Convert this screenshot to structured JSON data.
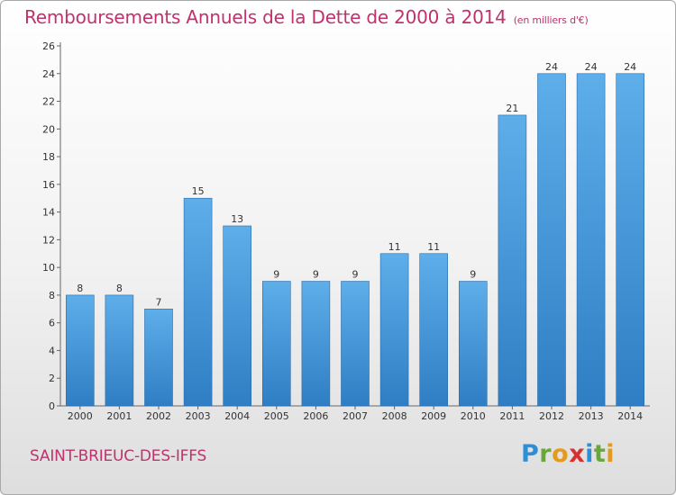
{
  "header": {
    "title": "Remboursements Annuels de la Dette de 2000 à 2014",
    "subtitle": "(en milliers d'€)"
  },
  "commune": "SAINT-BRIEUC-DES-IFFS",
  "logo": {
    "letters": [
      "P",
      "r",
      "o",
      "x",
      "i",
      "t",
      "i"
    ]
  },
  "colors": {
    "title": "#c0316d",
    "bar_light": "#5eaeea",
    "bar_dark": "#2f7ec4"
  },
  "chart_data": {
    "type": "bar",
    "title": "Remboursements Annuels de la Dette de 2000 à 2014",
    "subtitle": "(en milliers d'€)",
    "categories": [
      "2000",
      "2001",
      "2002",
      "2003",
      "2004",
      "2005",
      "2006",
      "2007",
      "2008",
      "2009",
      "2010",
      "2011",
      "2012",
      "2013",
      "2014"
    ],
    "values": [
      8,
      8,
      7,
      15,
      13,
      9,
      9,
      9,
      11,
      11,
      9,
      21,
      24,
      24,
      24
    ],
    "ylim": [
      0,
      26
    ],
    "yticks": [
      0,
      2,
      4,
      6,
      8,
      10,
      12,
      14,
      16,
      18,
      20,
      22,
      24,
      26
    ],
    "grid": false,
    "data_labels": true
  }
}
